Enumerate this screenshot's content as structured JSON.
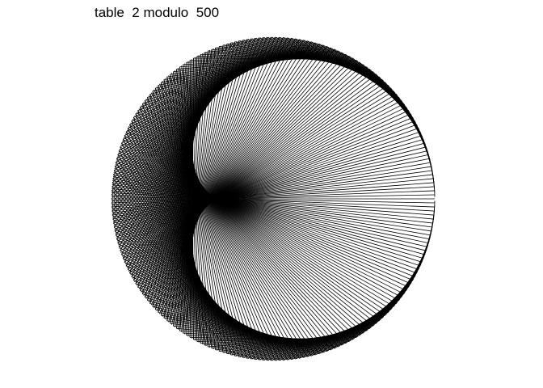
{
  "title": "table  2 modulo  500",
  "diagram": {
    "multiplier": 2,
    "modulus": 500,
    "line_color": "#000000",
    "background": "#ffffff"
  }
}
